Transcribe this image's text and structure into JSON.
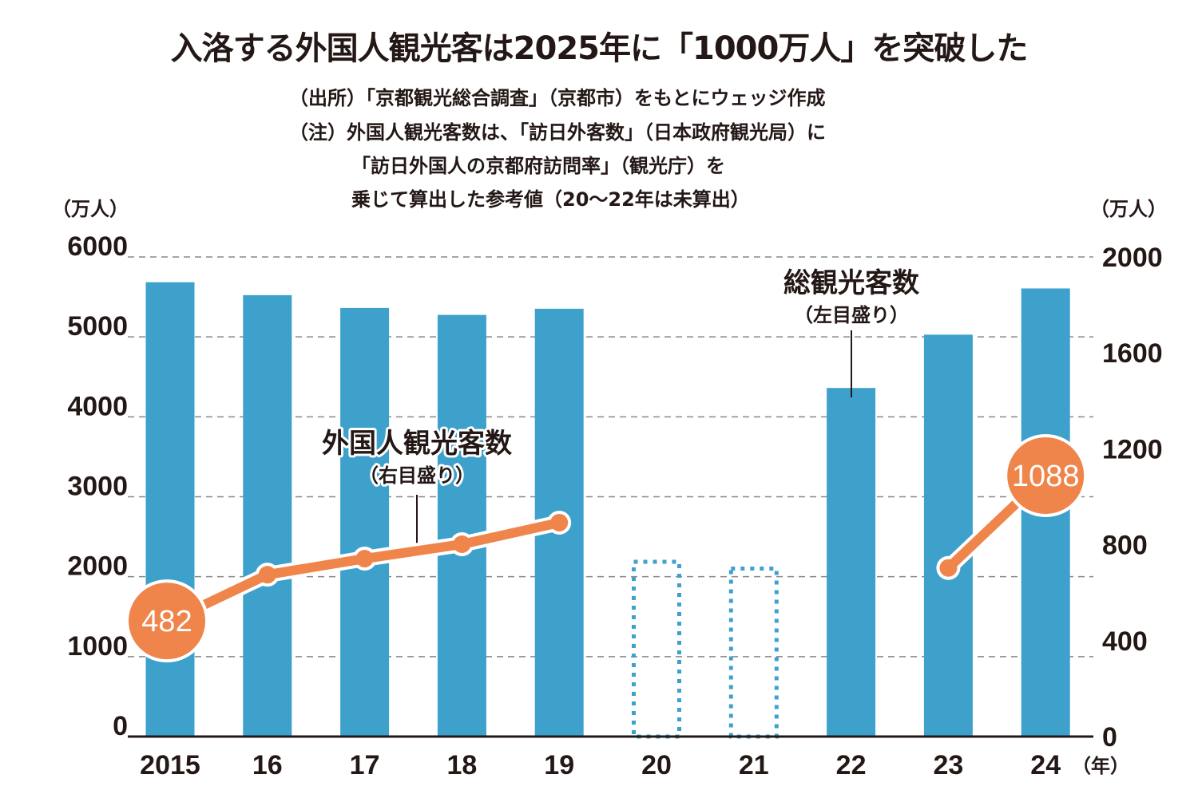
{
  "title": "入洛する外国人観光客は2025年に「1000万人」を突破した",
  "notes": {
    "source": "（出所）「京都観光総合調査」（京都市）をもとにウェッジ作成",
    "note_line1": "（注）外国人観光客数は、「訪日外客数」（日本政府観光局）に",
    "note_line2": "「訪日外国人の京都府訪問率」（観光庁）を",
    "note_line3": "乗じて算出した参考値（20〜22年は未算出）"
  },
  "colors": {
    "bar": "#3ea1cc",
    "line": "#ef854a",
    "grid": "#888888",
    "text": "#231815"
  },
  "chart_data": {
    "type": "bar+line",
    "title": "入洛する外国人観光客は2025年に「1000万人」を突破した",
    "categories": [
      "2015",
      "16",
      "17",
      "18",
      "19",
      "20",
      "21",
      "22",
      "23",
      "24"
    ],
    "x_unit": "（年）",
    "left_axis": {
      "unit": "（万人）",
      "ylim": [
        0,
        6000
      ],
      "ticks": [
        0,
        1000,
        2000,
        3000,
        4000,
        5000,
        6000
      ]
    },
    "right_axis": {
      "unit": "（万人）",
      "ylim": [
        0,
        2000
      ],
      "ticks": [
        0,
        400,
        800,
        1200,
        1600,
        2000
      ]
    },
    "grid": true,
    "series": [
      {
        "name": "総観光客数",
        "axis_note": "（左目盛り）",
        "type": "bar",
        "axis": "left",
        "values": [
          5684,
          5522,
          5362,
          5275,
          5352,
          2186,
          2102,
          4361,
          5028,
          5606
        ],
        "estimated_style": [
          false,
          false,
          false,
          false,
          false,
          true,
          true,
          false,
          false,
          false
        ]
      },
      {
        "name": "外国人観光客数",
        "axis_note": "（右目盛り）",
        "type": "line",
        "axis": "right",
        "values": [
          482,
          675,
          742,
          802,
          892,
          null,
          null,
          null,
          703,
          1088
        ],
        "labeled": {
          "0": "482",
          "9": "1088"
        }
      }
    ]
  }
}
